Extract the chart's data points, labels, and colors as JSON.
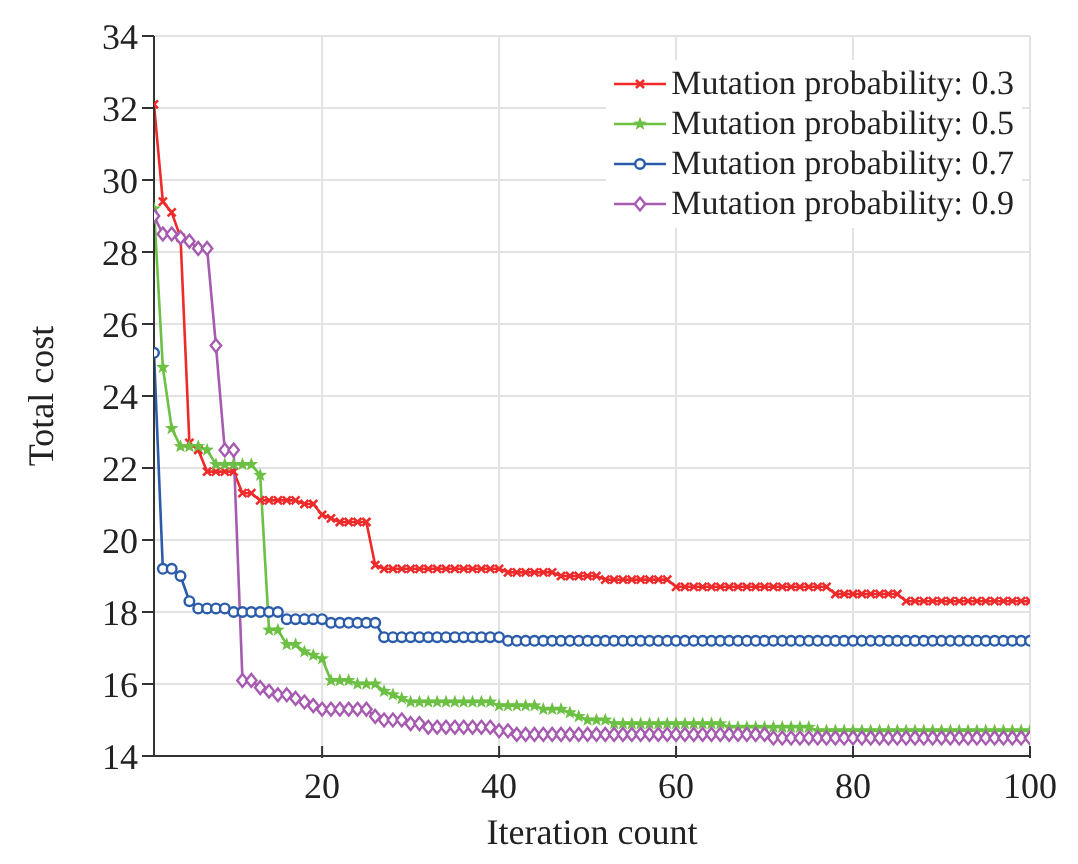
{
  "chart_data": {
    "type": "line",
    "xlabel": "Iteration count",
    "ylabel": "Total cost",
    "x": [
      1,
      2,
      3,
      4,
      5,
      6,
      7,
      8,
      9,
      10,
      11,
      12,
      13,
      14,
      15,
      16,
      17,
      18,
      19,
      20,
      21,
      22,
      23,
      24,
      25,
      26,
      27,
      28,
      29,
      30,
      31,
      32,
      33,
      34,
      35,
      36,
      37,
      38,
      39,
      40,
      41,
      42,
      43,
      44,
      45,
      46,
      47,
      48,
      49,
      50,
      51,
      52,
      53,
      54,
      55,
      56,
      57,
      58,
      59,
      60,
      61,
      62,
      63,
      64,
      65,
      66,
      67,
      68,
      69,
      70,
      71,
      72,
      73,
      74,
      75,
      76,
      77,
      78,
      79,
      80,
      81,
      82,
      83,
      84,
      85,
      86,
      87,
      88,
      89,
      90,
      91,
      92,
      93,
      94,
      95,
      96,
      97,
      98,
      99,
      100
    ],
    "series": [
      {
        "name": "Mutation probability: 0.3",
        "color": "#ee2a2a",
        "marker": "cross",
        "values": [
          32.1,
          29.4,
          29.1,
          28.4,
          22.7,
          22.5,
          21.9,
          21.9,
          21.9,
          21.9,
          21.3,
          21.3,
          21.1,
          21.1,
          21.1,
          21.1,
          21.1,
          21.0,
          21.0,
          20.7,
          20.6,
          20.5,
          20.5,
          20.5,
          20.5,
          19.3,
          19.2,
          19.2,
          19.2,
          19.2,
          19.2,
          19.2,
          19.2,
          19.2,
          19.2,
          19.2,
          19.2,
          19.2,
          19.2,
          19.2,
          19.1,
          19.1,
          19.1,
          19.1,
          19.1,
          19.1,
          19.0,
          19.0,
          19.0,
          19.0,
          19.0,
          18.9,
          18.9,
          18.9,
          18.9,
          18.9,
          18.9,
          18.9,
          18.9,
          18.7,
          18.7,
          18.7,
          18.7,
          18.7,
          18.7,
          18.7,
          18.7,
          18.7,
          18.7,
          18.7,
          18.7,
          18.7,
          18.7,
          18.7,
          18.7,
          18.7,
          18.7,
          18.5,
          18.5,
          18.5,
          18.5,
          18.5,
          18.5,
          18.5,
          18.5,
          18.3,
          18.3,
          18.3,
          18.3,
          18.3,
          18.3,
          18.3,
          18.3,
          18.3,
          18.3,
          18.3,
          18.3,
          18.3,
          18.3,
          18.3
        ]
      },
      {
        "name": "Mutation probability: 0.5",
        "color": "#6cc043",
        "marker": "star",
        "values": [
          29.2,
          24.8,
          23.1,
          22.6,
          22.6,
          22.6,
          22.5,
          22.1,
          22.1,
          22.1,
          22.1,
          22.1,
          21.8,
          17.5,
          17.5,
          17.1,
          17.1,
          16.9,
          16.8,
          16.7,
          16.1,
          16.1,
          16.1,
          16.0,
          16.0,
          16.0,
          15.8,
          15.7,
          15.6,
          15.5,
          15.5,
          15.5,
          15.5,
          15.5,
          15.5,
          15.5,
          15.5,
          15.5,
          15.5,
          15.4,
          15.4,
          15.4,
          15.4,
          15.4,
          15.3,
          15.3,
          15.3,
          15.2,
          15.1,
          15.0,
          15.0,
          15.0,
          14.9,
          14.9,
          14.9,
          14.9,
          14.9,
          14.9,
          14.9,
          14.9,
          14.9,
          14.9,
          14.9,
          14.9,
          14.9,
          14.8,
          14.8,
          14.8,
          14.8,
          14.8,
          14.8,
          14.8,
          14.8,
          14.8,
          14.8,
          14.7,
          14.7,
          14.7,
          14.7,
          14.7,
          14.7,
          14.7,
          14.7,
          14.7,
          14.7,
          14.7,
          14.7,
          14.7,
          14.7,
          14.7,
          14.7,
          14.7,
          14.7,
          14.7,
          14.7,
          14.7,
          14.7,
          14.7,
          14.7,
          14.7
        ]
      },
      {
        "name": "Mutation probability: 0.7",
        "color": "#2a5caa",
        "marker": "circle",
        "values": [
          25.2,
          19.2,
          19.2,
          19.0,
          18.3,
          18.1,
          18.1,
          18.1,
          18.1,
          18.0,
          18.0,
          18.0,
          18.0,
          18.0,
          18.0,
          17.8,
          17.8,
          17.8,
          17.8,
          17.8,
          17.7,
          17.7,
          17.7,
          17.7,
          17.7,
          17.7,
          17.3,
          17.3,
          17.3,
          17.3,
          17.3,
          17.3,
          17.3,
          17.3,
          17.3,
          17.3,
          17.3,
          17.3,
          17.3,
          17.3,
          17.2,
          17.2,
          17.2,
          17.2,
          17.2,
          17.2,
          17.2,
          17.2,
          17.2,
          17.2,
          17.2,
          17.2,
          17.2,
          17.2,
          17.2,
          17.2,
          17.2,
          17.2,
          17.2,
          17.2,
          17.2,
          17.2,
          17.2,
          17.2,
          17.2,
          17.2,
          17.2,
          17.2,
          17.2,
          17.2,
          17.2,
          17.2,
          17.2,
          17.2,
          17.2,
          17.2,
          17.2,
          17.2,
          17.2,
          17.2,
          17.2,
          17.2,
          17.2,
          17.2,
          17.2,
          17.2,
          17.2,
          17.2,
          17.2,
          17.2,
          17.2,
          17.2,
          17.2,
          17.2,
          17.2,
          17.2,
          17.2,
          17.2,
          17.2,
          17.2
        ]
      },
      {
        "name": "Mutation probability: 0.9",
        "color": "#a65bb0",
        "marker": "diamond",
        "values": [
          29.0,
          28.5,
          28.5,
          28.4,
          28.3,
          28.1,
          28.1,
          25.4,
          22.5,
          22.5,
          16.1,
          16.1,
          15.9,
          15.8,
          15.7,
          15.7,
          15.6,
          15.5,
          15.4,
          15.3,
          15.3,
          15.3,
          15.3,
          15.3,
          15.3,
          15.1,
          15.0,
          15.0,
          15.0,
          14.9,
          14.9,
          14.8,
          14.8,
          14.8,
          14.8,
          14.8,
          14.8,
          14.8,
          14.8,
          14.7,
          14.7,
          14.6,
          14.6,
          14.6,
          14.6,
          14.6,
          14.6,
          14.6,
          14.6,
          14.6,
          14.6,
          14.6,
          14.6,
          14.6,
          14.6,
          14.6,
          14.6,
          14.6,
          14.6,
          14.6,
          14.6,
          14.6,
          14.6,
          14.6,
          14.6,
          14.6,
          14.6,
          14.6,
          14.6,
          14.6,
          14.5,
          14.5,
          14.5,
          14.5,
          14.5,
          14.5,
          14.5,
          14.5,
          14.5,
          14.5,
          14.5,
          14.5,
          14.5,
          14.5,
          14.5,
          14.5,
          14.5,
          14.5,
          14.5,
          14.5,
          14.5,
          14.5,
          14.5,
          14.5,
          14.5,
          14.5,
          14.5,
          14.5,
          14.5,
          14.5
        ]
      }
    ],
    "xlim": [
      1,
      100
    ],
    "xticks": [
      20,
      40,
      60,
      80,
      100
    ],
    "ylim": [
      14,
      34
    ],
    "yticks": [
      14,
      16,
      18,
      20,
      22,
      24,
      26,
      28,
      30,
      32,
      34
    ],
    "grid": true,
    "legend": "top right",
    "line_style": "solid"
  }
}
